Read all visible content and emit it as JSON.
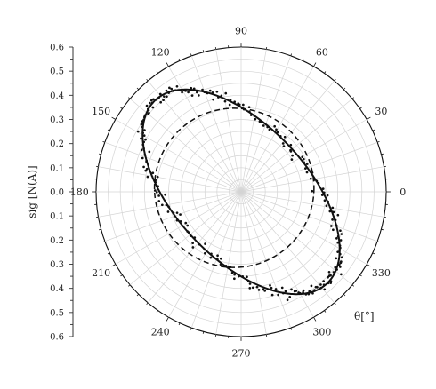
{
  "chart_data": {
    "type": "polar-scatter-line",
    "radial_axis": {
      "label": "sig [N(A)]",
      "range": [
        0,
        0.6
      ],
      "ticks": [
        "0.6",
        "0.5",
        "0.4",
        "0.3",
        "0.2",
        "0.1",
        "0.0",
        "0.1",
        "0.2",
        "0.3",
        "0.4",
        "0.5",
        "0.6"
      ],
      "tick_values": [
        0.6,
        0.5,
        0.4,
        0.3,
        0.2,
        0.1,
        0.0,
        0.1,
        0.2,
        0.3,
        0.4,
        0.5,
        0.6
      ],
      "grid_circles": true
    },
    "angular_axis": {
      "label": "θ[°]",
      "unit": "degrees",
      "ticks": [
        0,
        30,
        60,
        90,
        120,
        150,
        180,
        210,
        240,
        270,
        300,
        330
      ],
      "tick_labels": [
        "0",
        "30",
        "60",
        "90",
        "120",
        "150",
        "180",
        "210",
        "240",
        "270",
        "300",
        "330"
      ],
      "grid_step_deg": 10
    },
    "series": [
      {
        "style": "solid-line",
        "model": "ellipse",
        "semi_major": 0.52,
        "semi_minor": 0.275,
        "major_axis_angle_deg": 133
      },
      {
        "style": "dashed-line",
        "model": "circle",
        "center_angle_deg": 150,
        "center_r": 0.033,
        "radius": 0.33
      },
      {
        "style": "scatter-points",
        "follows": "solid-line",
        "count": 240,
        "scatter_sigma": 0.012
      }
    ]
  }
}
